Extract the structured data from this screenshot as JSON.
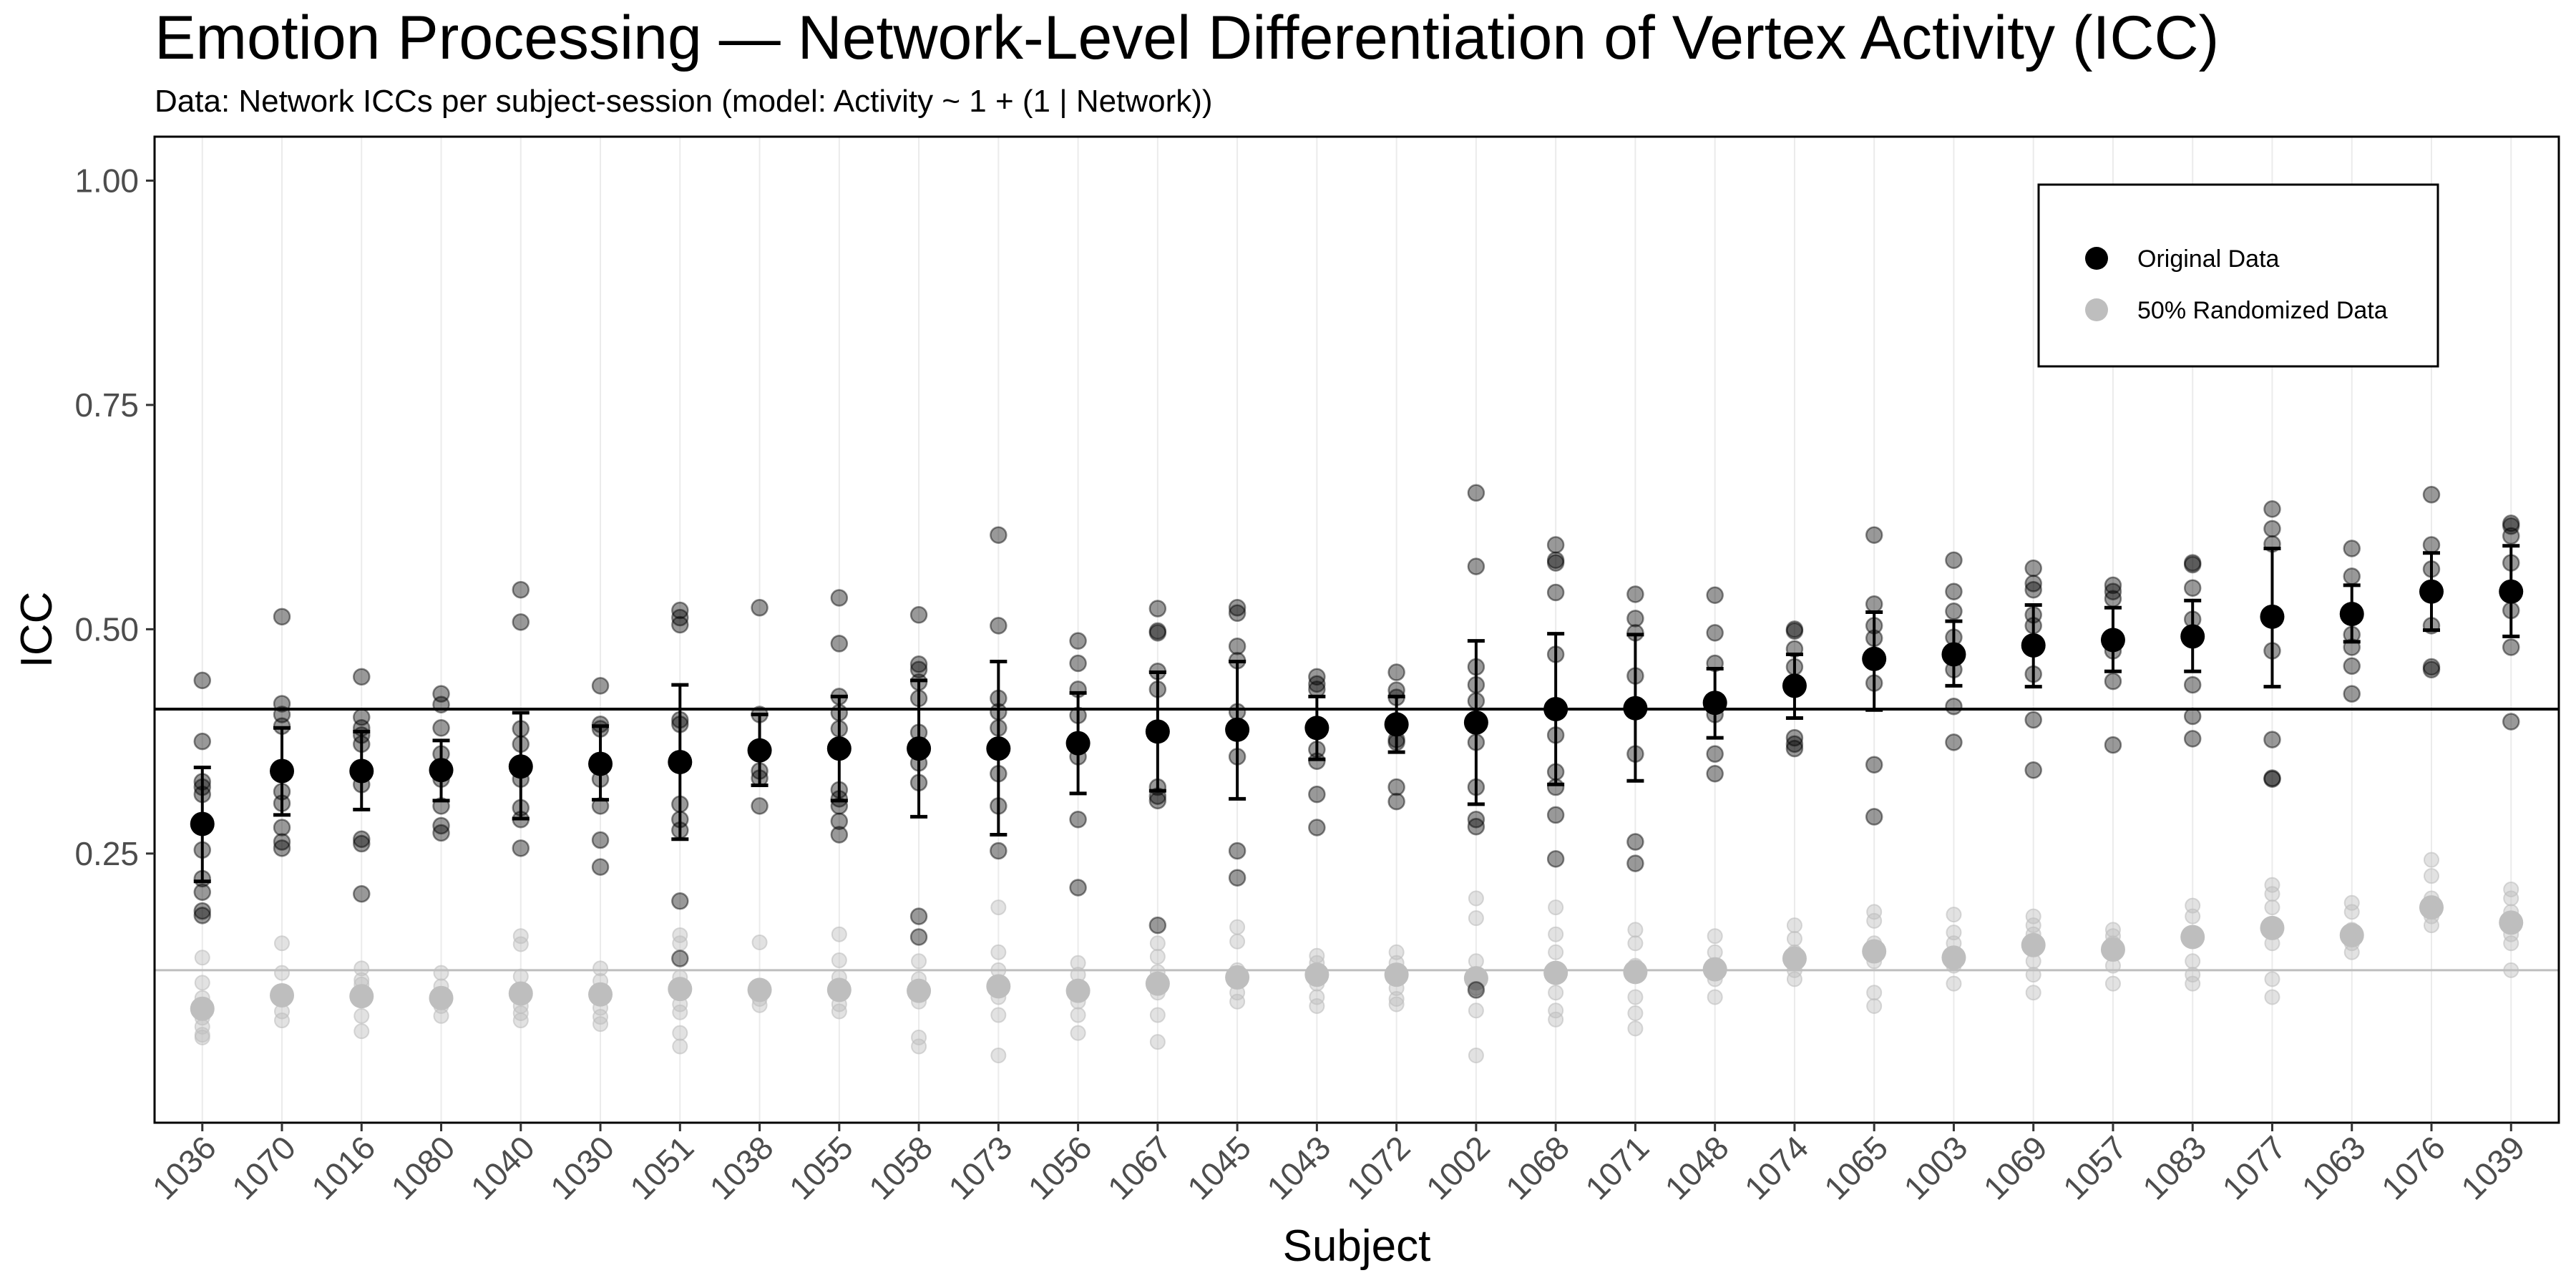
{
  "chart_data": {
    "type": "scatter",
    "title": "Emotion Processing — Network-Level Differentiation of Vertex Activity (ICC)",
    "subtitle": "Data: Network ICCs per subject-session (model: Activity ~ 1 + (1 | Network))",
    "xlabel": "Subject",
    "ylabel": "ICC",
    "ylim": [
      -0.05,
      1.049
    ],
    "yticks": [
      0.25,
      0.5,
      0.75,
      1.0
    ],
    "ytick_labels": [
      "0.25",
      "0.50",
      "0.75",
      "1.00"
    ],
    "grid": "vertical-major",
    "legend": {
      "position": "top-right",
      "entries": [
        {
          "label": "Original Data",
          "color": "#000000"
        },
        {
          "label": "50% Randomized Data",
          "color": "#bebebe"
        }
      ]
    },
    "reference_lines": [
      {
        "name": "original-grand-mean",
        "y": 0.411,
        "color": "#000000"
      },
      {
        "name": "randomized-grand-mean",
        "y": 0.12,
        "color": "#bebebe"
      }
    ],
    "categories": [
      "1036",
      "1070",
      "1016",
      "1080",
      "1040",
      "1030",
      "1051",
      "1038",
      "1055",
      "1058",
      "1073",
      "1056",
      "1067",
      "1045",
      "1043",
      "1072",
      "1002",
      "1068",
      "1071",
      "1048",
      "1074",
      "1065",
      "1003",
      "1069",
      "1057",
      "1083",
      "1077",
      "1063",
      "1076",
      "1039"
    ],
    "series": [
      {
        "name": "Original Data",
        "color": "#000000",
        "means": [
          0.283,
          0.342,
          0.342,
          0.343,
          0.347,
          0.35,
          0.352,
          0.365,
          0.367,
          0.367,
          0.367,
          0.373,
          0.386,
          0.388,
          0.39,
          0.394,
          0.396,
          0.411,
          0.412,
          0.418,
          0.437,
          0.467,
          0.472,
          0.482,
          0.488,
          0.492,
          0.514,
          0.517,
          0.542,
          0.542
        ],
        "err_low": [
          0.219,
          0.293,
          0.299,
          0.309,
          0.289,
          0.31,
          0.266,
          0.326,
          0.309,
          0.291,
          0.271,
          0.317,
          0.32,
          0.311,
          0.355,
          0.363,
          0.305,
          0.327,
          0.331,
          0.379,
          0.401,
          0.41,
          0.437,
          0.436,
          0.453,
          0.453,
          0.436,
          0.486,
          0.499,
          0.492
        ],
        "err_high": [
          0.346,
          0.39,
          0.386,
          0.376,
          0.407,
          0.392,
          0.438,
          0.405,
          0.425,
          0.443,
          0.464,
          0.429,
          0.452,
          0.464,
          0.425,
          0.425,
          0.487,
          0.495,
          0.494,
          0.456,
          0.472,
          0.519,
          0.509,
          0.527,
          0.524,
          0.532,
          0.59,
          0.549,
          0.585,
          0.593
        ],
        "points": [
          [
            0.443,
            0.375,
            0.33,
            0.324,
            0.316,
            0.254,
            0.222,
            0.207,
            0.186,
            0.181
          ],
          [
            0.514,
            0.417,
            0.405,
            0.392,
            0.319,
            0.306,
            0.279,
            0.263,
            0.256
          ],
          [
            0.447,
            0.402,
            0.39,
            0.382,
            0.372,
            0.327,
            0.266,
            0.261,
            0.205
          ],
          [
            0.428,
            0.416,
            0.39,
            0.361,
            0.333,
            0.303,
            0.281,
            0.273
          ],
          [
            0.544,
            0.508,
            0.389,
            0.372,
            0.333,
            0.301,
            0.288,
            0.256
          ],
          [
            0.437,
            0.394,
            0.389,
            0.353,
            0.333,
            0.303,
            0.265,
            0.235
          ],
          [
            0.521,
            0.513,
            0.505,
            0.399,
            0.394,
            0.305,
            0.288,
            0.276,
            0.197,
            0.133
          ],
          [
            0.524,
            0.405,
            0.342,
            0.334,
            0.303
          ],
          [
            0.535,
            0.484,
            0.425,
            0.407,
            0.389,
            0.321,
            0.311,
            0.303,
            0.286,
            0.271
          ],
          [
            0.516,
            0.461,
            0.455,
            0.441,
            0.423,
            0.385,
            0.351,
            0.329,
            0.18,
            0.157
          ],
          [
            0.605,
            0.504,
            0.423,
            0.408,
            0.39,
            0.339,
            0.303,
            0.253
          ],
          [
            0.487,
            0.462,
            0.433,
            0.404,
            0.358,
            0.288,
            0.212
          ],
          [
            0.523,
            0.498,
            0.496,
            0.453,
            0.433,
            0.324,
            0.314,
            0.309,
            0.17
          ],
          [
            0.524,
            0.518,
            0.481,
            0.465,
            0.408,
            0.358,
            0.253,
            0.223
          ],
          [
            0.447,
            0.439,
            0.433,
            0.366,
            0.353,
            0.316,
            0.279
          ],
          [
            0.452,
            0.432,
            0.424,
            0.377,
            0.374,
            0.324,
            0.308
          ],
          [
            0.652,
            0.57,
            0.458,
            0.438,
            0.42,
            0.374,
            0.324,
            0.288,
            0.28,
            0.098
          ],
          [
            0.594,
            0.577,
            0.574,
            0.541,
            0.472,
            0.382,
            0.341,
            0.324,
            0.293,
            0.244
          ],
          [
            0.539,
            0.512,
            0.496,
            0.448,
            0.361,
            0.263,
            0.239
          ],
          [
            0.538,
            0.496,
            0.462,
            0.405,
            0.361,
            0.339
          ],
          [
            0.5,
            0.498,
            0.478,
            0.458,
            0.379,
            0.372,
            0.367
          ],
          [
            0.605,
            0.528,
            0.504,
            0.49,
            0.44,
            0.349,
            0.291
          ],
          [
            0.577,
            0.542,
            0.52,
            0.491,
            0.455,
            0.414,
            0.374
          ],
          [
            0.568,
            0.551,
            0.544,
            0.516,
            0.504,
            0.45,
            0.399,
            0.343
          ],
          [
            0.549,
            0.542,
            0.534,
            0.476,
            0.442,
            0.371
          ],
          [
            0.574,
            0.572,
            0.546,
            0.511,
            0.438,
            0.403,
            0.378
          ],
          [
            0.634,
            0.612,
            0.595,
            0.476,
            0.377,
            0.334,
            0.333
          ],
          [
            0.59,
            0.559,
            0.494,
            0.48,
            0.459,
            0.428
          ],
          [
            0.65,
            0.594,
            0.567,
            0.504,
            0.458,
            0.455
          ],
          [
            0.618,
            0.615,
            0.604,
            0.574,
            0.521,
            0.48,
            0.397
          ]
        ]
      },
      {
        "name": "50% Randomized Data",
        "color": "#bebebe",
        "means": [
          0.077,
          0.092,
          0.091,
          0.089,
          0.094,
          0.093,
          0.099,
          0.098,
          0.098,
          0.097,
          0.102,
          0.097,
          0.105,
          0.112,
          0.115,
          0.115,
          0.111,
          0.117,
          0.118,
          0.121,
          0.133,
          0.141,
          0.134,
          0.148,
          0.143,
          0.157,
          0.167,
          0.159,
          0.19,
          0.173
        ],
        "points": [
          [
            0.134,
            0.106,
            0.089,
            0.067,
            0.057,
            0.048,
            0.045
          ],
          [
            0.15,
            0.117,
            0.074,
            0.064
          ],
          [
            0.122,
            0.109,
            0.104,
            0.069,
            0.052
          ],
          [
            0.117,
            0.102,
            0.08,
            0.069
          ],
          [
            0.158,
            0.149,
            0.113,
            0.08,
            0.072,
            0.064
          ],
          [
            0.122,
            0.108,
            0.078,
            0.068,
            0.06
          ],
          [
            0.159,
            0.15,
            0.112,
            0.082,
            0.073,
            0.05,
            0.035
          ],
          [
            0.151,
            0.088,
            0.081
          ],
          [
            0.16,
            0.131,
            0.112,
            0.082,
            0.074
          ],
          [
            0.13,
            0.11,
            0.085,
            0.045,
            0.035
          ],
          [
            0.19,
            0.14,
            0.12,
            0.09,
            0.07,
            0.025
          ],
          [
            0.128,
            0.115,
            0.085,
            0.07,
            0.05
          ],
          [
            0.15,
            0.135,
            0.118,
            0.095,
            0.07,
            0.04
          ],
          [
            0.168,
            0.152,
            0.12,
            0.095,
            0.085
          ],
          [
            0.136,
            0.128,
            0.105,
            0.09,
            0.08
          ],
          [
            0.14,
            0.128,
            0.1,
            0.088,
            0.082
          ],
          [
            0.2,
            0.178,
            0.13,
            0.1,
            0.075,
            0.025
          ],
          [
            0.19,
            0.16,
            0.14,
            0.095,
            0.075,
            0.065
          ],
          [
            0.165,
            0.15,
            0.125,
            0.09,
            0.072,
            0.055
          ],
          [
            0.158,
            0.14,
            0.11,
            0.09
          ],
          [
            0.17,
            0.155,
            0.14,
            0.12,
            0.11
          ],
          [
            0.185,
            0.175,
            0.15,
            0.13,
            0.095,
            0.08
          ],
          [
            0.182,
            0.162,
            0.15,
            0.125,
            0.105
          ],
          [
            0.18,
            0.17,
            0.16,
            0.13,
            0.115,
            0.095
          ],
          [
            0.165,
            0.158,
            0.15,
            0.125,
            0.105
          ],
          [
            0.192,
            0.18,
            0.16,
            0.13,
            0.115,
            0.105
          ],
          [
            0.215,
            0.205,
            0.19,
            0.15,
            0.11,
            0.09
          ],
          [
            0.195,
            0.185,
            0.165,
            0.15,
            0.14
          ],
          [
            0.243,
            0.225,
            0.2,
            0.18,
            0.17
          ],
          [
            0.21,
            0.2,
            0.185,
            0.16,
            0.15,
            0.12
          ]
        ]
      }
    ]
  }
}
